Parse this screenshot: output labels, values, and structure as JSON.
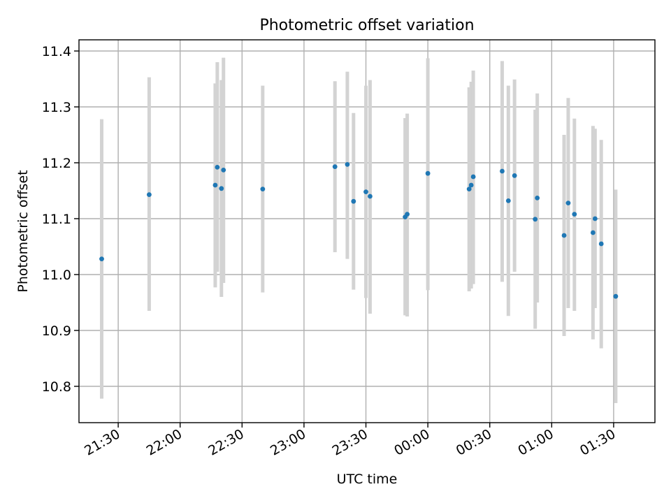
{
  "chart_data": {
    "type": "scatter",
    "title": "Photometric offset variation",
    "xlabel": "UTC time",
    "ylabel": "Photometric offset",
    "grid": true,
    "xlim": [
      "21:11",
      "01:50"
    ],
    "ylim": [
      10.735,
      11.42
    ],
    "x_ticks": [
      "21:30",
      "22:00",
      "22:30",
      "23:00",
      "23:30",
      "00:00",
      "00:30",
      "01:00",
      "01:30"
    ],
    "y_ticks": [
      "10.8",
      "10.9",
      "11.0",
      "11.1",
      "11.2",
      "11.3",
      "11.4"
    ],
    "colors": {
      "point": "#1f77b4",
      "errorbar": "#d3d3d3",
      "grid": "#b0b0b0"
    },
    "points": [
      {
        "x": "21:22",
        "y": 11.028,
        "ylow": 10.778,
        "yhigh": 11.278
      },
      {
        "x": "21:45",
        "y": 11.143,
        "ylow": 10.935,
        "yhigh": 11.353
      },
      {
        "x": "22:17",
        "y": 11.16,
        "ylow": 10.977,
        "yhigh": 11.342
      },
      {
        "x": "22:18",
        "y": 11.192,
        "ylow": 11.005,
        "yhigh": 11.38
      },
      {
        "x": "22:20",
        "y": 11.154,
        "ylow": 10.96,
        "yhigh": 11.348
      },
      {
        "x": "22:21",
        "y": 11.187,
        "ylow": 10.985,
        "yhigh": 11.388
      },
      {
        "x": "22:40",
        "y": 11.153,
        "ylow": 10.968,
        "yhigh": 11.338
      },
      {
        "x": "23:15",
        "y": 11.193,
        "ylow": 11.04,
        "yhigh": 11.346
      },
      {
        "x": "23:21",
        "y": 11.197,
        "ylow": 11.028,
        "yhigh": 11.363
      },
      {
        "x": "23:24",
        "y": 11.131,
        "ylow": 10.973,
        "yhigh": 11.289
      },
      {
        "x": "23:30",
        "y": 11.148,
        "ylow": 10.958,
        "yhigh": 11.338
      },
      {
        "x": "23:32",
        "y": 11.14,
        "ylow": 10.93,
        "yhigh": 11.348
      },
      {
        "x": "23:49",
        "y": 11.103,
        "ylow": 10.927,
        "yhigh": 11.28
      },
      {
        "x": "23:50",
        "y": 11.108,
        "ylow": 10.925,
        "yhigh": 11.288
      },
      {
        "x": "00:00",
        "y": 11.181,
        "ylow": 10.972,
        "yhigh": 11.387
      },
      {
        "x": "00:20",
        "y": 11.153,
        "ylow": 10.97,
        "yhigh": 11.335
      },
      {
        "x": "00:21",
        "y": 11.16,
        "ylow": 10.975,
        "yhigh": 11.345
      },
      {
        "x": "00:22",
        "y": 11.175,
        "ylow": 10.983,
        "yhigh": 11.365
      },
      {
        "x": "00:36",
        "y": 11.185,
        "ylow": 10.987,
        "yhigh": 11.382
      },
      {
        "x": "00:39",
        "y": 11.132,
        "ylow": 10.926,
        "yhigh": 11.338
      },
      {
        "x": "00:42",
        "y": 11.177,
        "ylow": 11.005,
        "yhigh": 11.349
      },
      {
        "x": "00:52",
        "y": 11.099,
        "ylow": 10.903,
        "yhigh": 11.295
      },
      {
        "x": "00:53",
        "y": 11.137,
        "ylow": 10.95,
        "yhigh": 11.324
      },
      {
        "x": "01:06",
        "y": 11.07,
        "ylow": 10.89,
        "yhigh": 11.25
      },
      {
        "x": "01:08",
        "y": 11.128,
        "ylow": 10.94,
        "yhigh": 11.316
      },
      {
        "x": "01:11",
        "y": 11.108,
        "ylow": 10.935,
        "yhigh": 11.279
      },
      {
        "x": "01:20",
        "y": 11.075,
        "ylow": 10.884,
        "yhigh": 11.266
      },
      {
        "x": "01:21",
        "y": 11.1,
        "ylow": 10.94,
        "yhigh": 11.261
      },
      {
        "x": "01:24",
        "y": 11.055,
        "ylow": 10.868,
        "yhigh": 11.241
      },
      {
        "x": "01:31",
        "y": 10.961,
        "ylow": 10.77,
        "yhigh": 11.152
      }
    ]
  }
}
